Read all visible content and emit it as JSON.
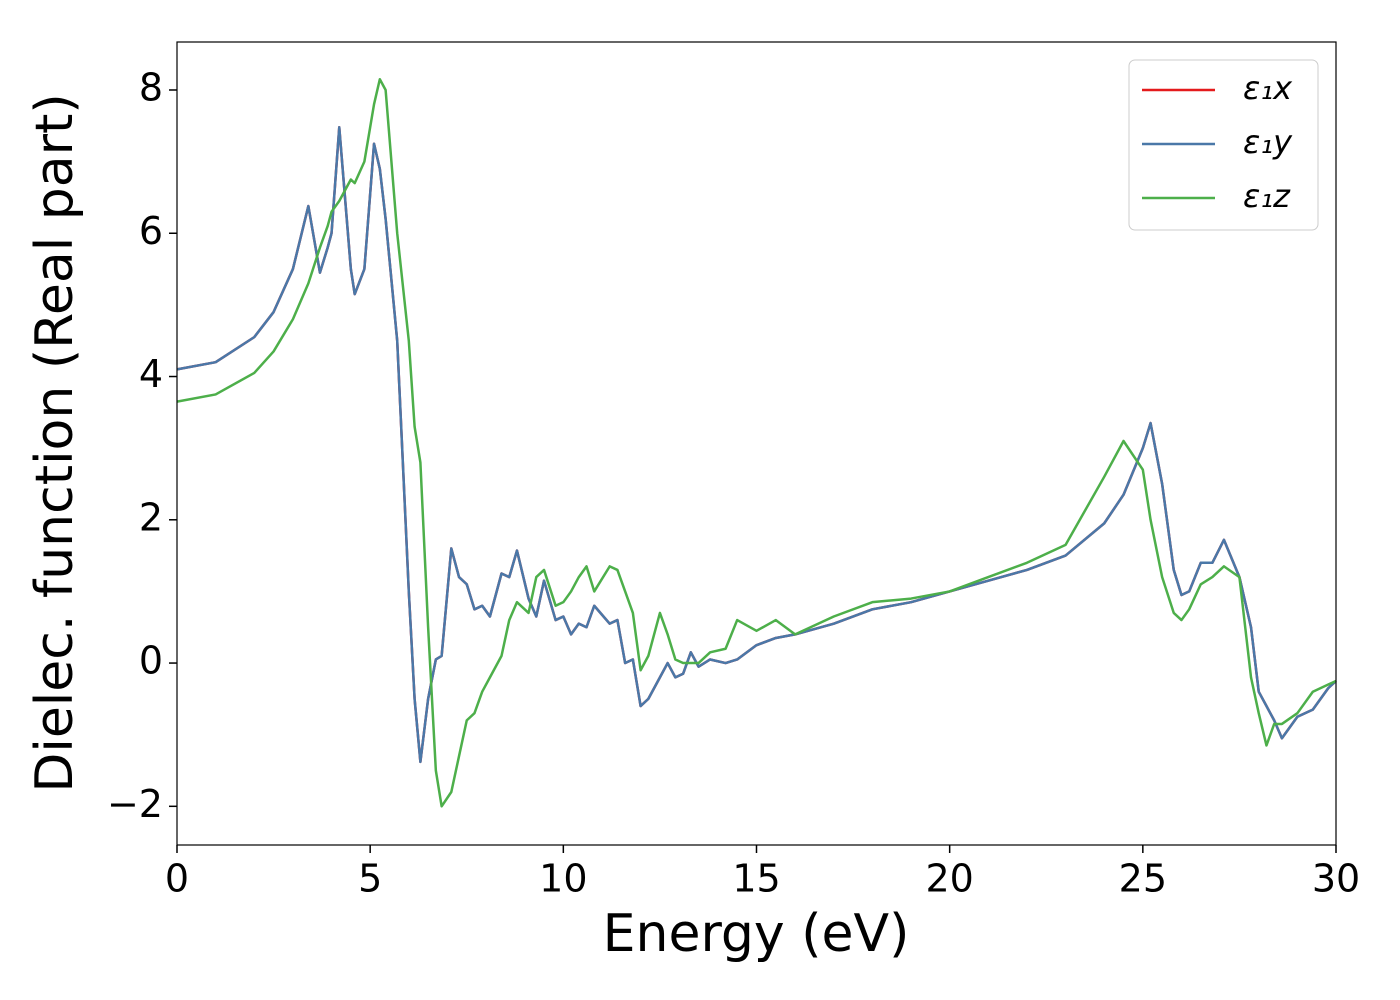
{
  "chart_data": {
    "type": "line",
    "x_label": "Energy (eV)",
    "y_label": "Dielec. function (Real part)",
    "x": [
      0,
      1,
      2,
      2.5,
      3,
      3.4,
      3.7,
      3.9,
      4.0,
      4.2,
      4.5,
      4.6,
      4.85,
      5.1,
      5.25,
      5.4,
      5.7,
      6.0,
      6.15,
      6.3,
      6.5,
      6.7,
      6.85,
      7.1,
      7.3,
      7.5,
      7.7,
      7.9,
      8.1,
      8.4,
      8.6,
      8.8,
      9.1,
      9.3,
      9.5,
      9.8,
      10.0,
      10.2,
      10.4,
      10.6,
      10.8,
      11.2,
      11.4,
      11.6,
      11.8,
      12.0,
      12.2,
      12.5,
      12.7,
      12.9,
      13.1,
      13.3,
      13.5,
      13.8,
      14.2,
      14.5,
      15.0,
      15.5,
      16.0,
      17.0,
      18.0,
      19.0,
      20.0,
      21.0,
      22.0,
      23.0,
      24.0,
      24.5,
      25.0,
      25.2,
      25.5,
      25.8,
      26.0,
      26.2,
      26.5,
      26.8,
      27.1,
      27.5,
      27.8,
      28.0,
      28.2,
      28.4,
      28.6,
      29.0,
      29.4,
      29.8,
      30
    ],
    "series": [
      {
        "name": "ε₁x",
        "color": "#e41a1c",
        "values": [
          4.1,
          4.2,
          4.55,
          4.9,
          5.5,
          6.38,
          5.45,
          5.8,
          6.0,
          7.48,
          5.5,
          5.15,
          5.5,
          7.25,
          6.9,
          6.2,
          4.5,
          1.0,
          -0.5,
          -1.38,
          -0.5,
          0.05,
          0.1,
          1.6,
          1.2,
          1.1,
          0.75,
          0.8,
          0.65,
          1.25,
          1.2,
          1.57,
          0.9,
          0.65,
          1.15,
          0.6,
          0.65,
          0.4,
          0.55,
          0.5,
          0.8,
          0.55,
          0.6,
          0.0,
          0.05,
          -0.6,
          -0.5,
          -0.2,
          0.0,
          -0.2,
          -0.15,
          0.15,
          -0.05,
          0.05,
          0.0,
          0.05,
          0.25,
          0.35,
          0.4,
          0.55,
          0.75,
          0.85,
          1.0,
          1.15,
          1.3,
          1.5,
          1.95,
          2.35,
          3.0,
          3.35,
          2.5,
          1.3,
          0.95,
          1.0,
          1.4,
          1.4,
          1.72,
          1.2,
          0.5,
          -0.4,
          -0.6,
          -0.8,
          -1.05,
          -0.75,
          -0.65,
          -0.35,
          -0.25
        ]
      },
      {
        "name": "ε₁y",
        "color": "#4a78a8",
        "values": [
          4.1,
          4.2,
          4.55,
          4.9,
          5.5,
          6.38,
          5.45,
          5.8,
          6.0,
          7.48,
          5.5,
          5.15,
          5.5,
          7.25,
          6.9,
          6.2,
          4.5,
          1.0,
          -0.5,
          -1.38,
          -0.5,
          0.05,
          0.1,
          1.6,
          1.2,
          1.1,
          0.75,
          0.8,
          0.65,
          1.25,
          1.2,
          1.57,
          0.9,
          0.65,
          1.15,
          0.6,
          0.65,
          0.4,
          0.55,
          0.5,
          0.8,
          0.55,
          0.6,
          0.0,
          0.05,
          -0.6,
          -0.5,
          -0.2,
          0.0,
          -0.2,
          -0.15,
          0.15,
          -0.05,
          0.05,
          0.0,
          0.05,
          0.25,
          0.35,
          0.4,
          0.55,
          0.75,
          0.85,
          1.0,
          1.15,
          1.3,
          1.5,
          1.95,
          2.35,
          3.0,
          3.35,
          2.5,
          1.3,
          0.95,
          1.0,
          1.4,
          1.4,
          1.72,
          1.2,
          0.5,
          -0.4,
          -0.6,
          -0.8,
          -1.05,
          -0.75,
          -0.65,
          -0.35,
          -0.25
        ]
      },
      {
        "name": "ε₁z",
        "color": "#4daf4a",
        "values": [
          3.65,
          3.75,
          4.05,
          4.35,
          4.8,
          5.3,
          5.8,
          6.1,
          6.3,
          6.45,
          6.75,
          6.7,
          7.0,
          7.8,
          8.15,
          8.0,
          6.0,
          4.5,
          3.3,
          2.8,
          0.5,
          -1.5,
          -2.0,
          -1.8,
          -1.3,
          -0.8,
          -0.7,
          -0.4,
          -0.2,
          0.1,
          0.6,
          0.85,
          0.7,
          1.2,
          1.3,
          0.8,
          0.85,
          1.0,
          1.2,
          1.35,
          1.0,
          1.35,
          1.3,
          1.0,
          0.7,
          -0.1,
          0.1,
          0.7,
          0.4,
          0.05,
          0.0,
          0.0,
          0.0,
          0.15,
          0.2,
          0.6,
          0.45,
          0.6,
          0.4,
          0.65,
          0.85,
          0.9,
          1.0,
          1.2,
          1.4,
          1.65,
          2.6,
          3.1,
          2.7,
          2.0,
          1.2,
          0.7,
          0.6,
          0.75,
          1.1,
          1.2,
          1.35,
          1.2,
          -0.2,
          -0.7,
          -1.15,
          -0.85,
          -0.85,
          -0.7,
          -0.4,
          -0.3,
          -0.25
        ]
      }
    ],
    "xlim": [
      0,
      30
    ],
    "xticks": [
      0,
      5,
      10,
      15,
      20,
      25,
      30
    ],
    "ylim": [
      -2.54,
      8.67
    ],
    "yticks": [
      {
        "value": -2,
        "label": "−2"
      },
      0,
      2,
      4,
      6,
      8
    ],
    "legend": "upper right",
    "grid": false
  }
}
